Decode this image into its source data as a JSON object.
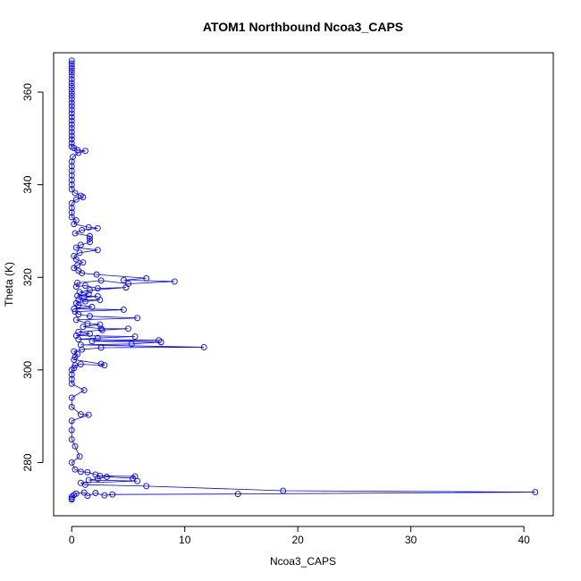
{
  "chart_data": {
    "type": "line",
    "title": "ATOM1 Northbound Ncoa3_CAPS",
    "xlabel": "Ncoa3_CAPS",
    "ylabel": "Theta (K)",
    "xlim": [
      -1.6,
      42.6
    ],
    "ylim": [
      268.5,
      368.5
    ],
    "x_ticks": [
      0,
      10,
      20,
      30,
      40
    ],
    "y_ticks": [
      280,
      300,
      320,
      340,
      360
    ],
    "grid": false,
    "legend": "none",
    "marker": "open-circle",
    "color": "#0000ff",
    "series": [
      {
        "points": [
          [
            0.0,
            366.8
          ],
          [
            0.0,
            366.2
          ],
          [
            0.0,
            365.6
          ],
          [
            0.0,
            365.0
          ],
          [
            0.0,
            364.3
          ],
          [
            0.0,
            363.6
          ],
          [
            0.0,
            362.8
          ],
          [
            0.0,
            362.0
          ],
          [
            0.0,
            361.3
          ],
          [
            0.0,
            360.6
          ],
          [
            0.0,
            359.9
          ],
          [
            0.0,
            359.2
          ],
          [
            0.0,
            358.5
          ],
          [
            0.0,
            357.7
          ],
          [
            0.0,
            357.0
          ],
          [
            0.0,
            356.2
          ],
          [
            0.0,
            355.4
          ],
          [
            0.0,
            354.6
          ],
          [
            0.0,
            353.8
          ],
          [
            0.0,
            353.0
          ],
          [
            0.0,
            352.2
          ],
          [
            0.0,
            351.4
          ],
          [
            0.0,
            350.6
          ],
          [
            0.0,
            349.8
          ],
          [
            0.0,
            349.0
          ],
          [
            0.0,
            348.2
          ],
          [
            0.2,
            347.9
          ],
          [
            0.5,
            347.5
          ],
          [
            1.2,
            347.3
          ],
          [
            0.6,
            346.9
          ],
          [
            0.1,
            346.0
          ],
          [
            0.0,
            345.0
          ],
          [
            0.0,
            344.0
          ],
          [
            0.0,
            343.0
          ],
          [
            0.0,
            342.0
          ],
          [
            0.0,
            341.0
          ],
          [
            0.0,
            340.0
          ],
          [
            0.0,
            339.0
          ],
          [
            0.3,
            338.2
          ],
          [
            0.8,
            337.6
          ],
          [
            1.0,
            337.3
          ],
          [
            0.4,
            336.8
          ],
          [
            0.0,
            336.0
          ],
          [
            0.0,
            335.0
          ],
          [
            0.0,
            334.0
          ],
          [
            0.0,
            333.0
          ],
          [
            0.4,
            332.3
          ],
          [
            0.2,
            331.5
          ],
          [
            1.5,
            330.8
          ],
          [
            2.3,
            330.6
          ],
          [
            0.9,
            330.2
          ],
          [
            0.3,
            329.5
          ],
          [
            1.6,
            328.9
          ],
          [
            1.6,
            328.3
          ],
          [
            1.6,
            327.6
          ],
          [
            0.8,
            327.0
          ],
          [
            0.4,
            326.4
          ],
          [
            2.3,
            325.9
          ],
          [
            0.7,
            325.3
          ],
          [
            0.2,
            324.6
          ],
          [
            0.4,
            323.9
          ],
          [
            1.0,
            323.2
          ],
          [
            0.5,
            322.6
          ],
          [
            0.2,
            322.0
          ],
          [
            0.6,
            321.4
          ],
          [
            0.9,
            320.9
          ],
          [
            2.2,
            320.6
          ],
          [
            6.6,
            319.8
          ],
          [
            4.6,
            319.4
          ],
          [
            9.1,
            319.1
          ],
          [
            5.0,
            318.6
          ],
          [
            2.6,
            319.3
          ],
          [
            0.5,
            318.8
          ],
          [
            0.4,
            318.0
          ],
          [
            1.2,
            318.2
          ],
          [
            2.3,
            317.6
          ],
          [
            4.8,
            317.8
          ],
          [
            1.6,
            317.2
          ],
          [
            0.7,
            316.8
          ],
          [
            1.5,
            316.4
          ],
          [
            0.5,
            316.0
          ],
          [
            2.3,
            315.9
          ],
          [
            1.1,
            315.6
          ],
          [
            0.6,
            315.2
          ],
          [
            2.5,
            315.1
          ],
          [
            1.2,
            314.8
          ],
          [
            0.4,
            314.4
          ],
          [
            0.6,
            314.0
          ],
          [
            1.8,
            313.6
          ],
          [
            0.2,
            313.2
          ],
          [
            4.6,
            313.0
          ],
          [
            0.3,
            312.6
          ],
          [
            0.6,
            312.0
          ],
          [
            1.6,
            311.6
          ],
          [
            5.8,
            311.2
          ],
          [
            0.4,
            310.8
          ],
          [
            1.4,
            310.0
          ],
          [
            2.5,
            309.8
          ],
          [
            1.0,
            309.3
          ],
          [
            2.6,
            308.9
          ],
          [
            5.0,
            308.9
          ],
          [
            2.7,
            308.6
          ],
          [
            0.6,
            308.2
          ],
          [
            1.6,
            307.8
          ],
          [
            0.4,
            307.4
          ],
          [
            5.6,
            307.2
          ],
          [
            2.3,
            306.9
          ],
          [
            0.6,
            306.6
          ],
          [
            7.7,
            306.4
          ],
          [
            1.8,
            306.2
          ],
          [
            7.9,
            306.0
          ],
          [
            5.3,
            305.6
          ],
          [
            0.8,
            305.4
          ],
          [
            11.7,
            304.9
          ],
          [
            2.6,
            304.8
          ],
          [
            0.9,
            304.4
          ],
          [
            0.2,
            304.0
          ],
          [
            0.5,
            303.4
          ],
          [
            0.3,
            302.8
          ],
          [
            0.2,
            302.2
          ],
          [
            2.6,
            301.3
          ],
          [
            2.9,
            301.0
          ],
          [
            0.8,
            301.2
          ],
          [
            0.3,
            301.0
          ],
          [
            0.2,
            300.4
          ],
          [
            0.0,
            300.0
          ],
          [
            0.0,
            299.0
          ],
          [
            0.0,
            298.0
          ],
          [
            0.0,
            297.0
          ],
          [
            1.1,
            295.6
          ],
          [
            0.0,
            294.0
          ],
          [
            0.0,
            292.0
          ],
          [
            0.8,
            290.4
          ],
          [
            1.5,
            290.3
          ],
          [
            0.0,
            289.0
          ],
          [
            0.0,
            287.0
          ],
          [
            0.0,
            285.0
          ],
          [
            0.3,
            283.5
          ],
          [
            0.7,
            281.3
          ],
          [
            0.0,
            280.0
          ],
          [
            0.3,
            278.5
          ],
          [
            0.8,
            278.0
          ],
          [
            1.4,
            277.9
          ],
          [
            2.1,
            277.4
          ],
          [
            2.5,
            277.1
          ],
          [
            5.6,
            277.0
          ],
          [
            5.4,
            276.6
          ],
          [
            3.1,
            276.9
          ],
          [
            2.3,
            276.5
          ],
          [
            1.5,
            276.2
          ],
          [
            5.8,
            276.0
          ],
          [
            0.8,
            275.6
          ],
          [
            1.2,
            275.2
          ],
          [
            6.6,
            274.9
          ],
          [
            18.7,
            273.9
          ],
          [
            41.0,
            273.6
          ],
          [
            14.7,
            273.2
          ],
          [
            3.6,
            273.1
          ],
          [
            2.9,
            272.9
          ],
          [
            2.1,
            273.4
          ],
          [
            1.4,
            272.8
          ],
          [
            1.1,
            273.5
          ],
          [
            0.4,
            273.3
          ],
          [
            0.2,
            273.0
          ],
          [
            0.0,
            272.6
          ],
          [
            0.0,
            272.2
          ],
          [
            0.0,
            272.0
          ]
        ]
      }
    ]
  }
}
